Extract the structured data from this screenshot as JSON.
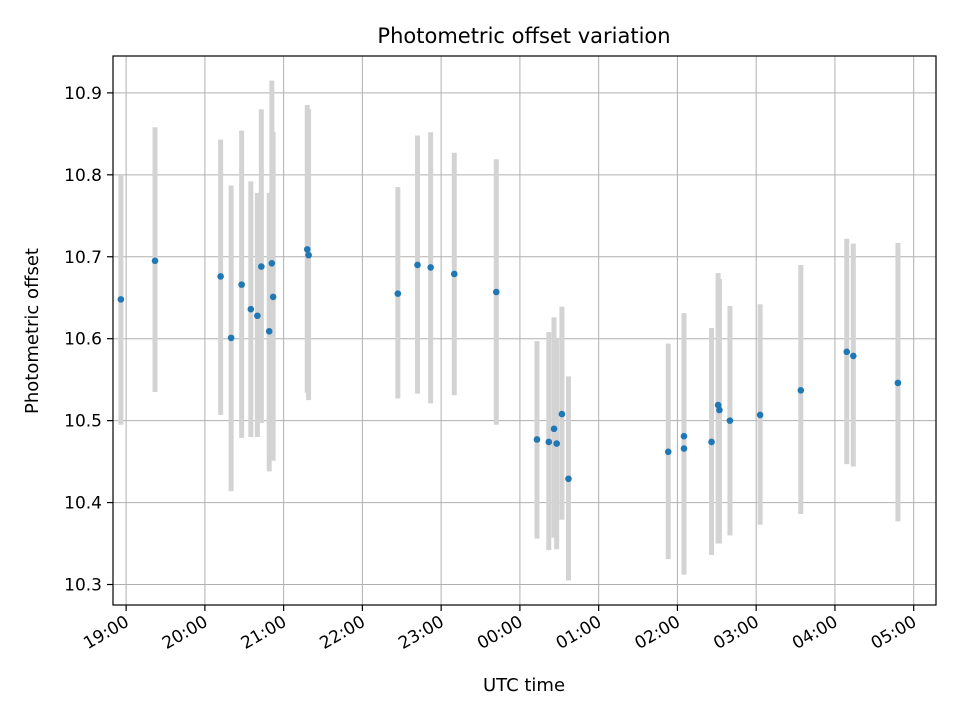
{
  "chart_data": {
    "type": "scatter",
    "title": "Photometric offset variation",
    "xlabel": "UTC time",
    "ylabel": "Photometric offset",
    "x_unit": "UTC time (HH:MM), night spanning midnight",
    "xlim": [
      "18:50",
      "05:17"
    ],
    "ylim": [
      10.275,
      10.945
    ],
    "x_ticks": [
      "19:00",
      "20:00",
      "21:00",
      "22:00",
      "23:00",
      "00:00",
      "01:00",
      "02:00",
      "03:00",
      "04:00",
      "05:00"
    ],
    "y_ticks": [
      10.3,
      10.4,
      10.5,
      10.6,
      10.7,
      10.8,
      10.9
    ],
    "grid": true,
    "x_tick_rotation": 30,
    "colors": {
      "point": "#1f77b4",
      "errorbar": "#d3d3d3",
      "grid": "#b0b0b0"
    },
    "series": [
      {
        "points": [
          {
            "x": "18:56",
            "y": 10.648,
            "low": 10.495,
            "high": 10.8
          },
          {
            "x": "19:22",
            "y": 10.695,
            "low": 10.535,
            "high": 10.858
          },
          {
            "x": "20:12",
            "y": 10.676,
            "low": 10.507,
            "high": 10.843
          },
          {
            "x": "20:20",
            "y": 10.601,
            "low": 10.414,
            "high": 10.787
          },
          {
            "x": "20:28",
            "y": 10.666,
            "low": 10.479,
            "high": 10.854
          },
          {
            "x": "20:35",
            "y": 10.636,
            "low": 10.48,
            "high": 10.792
          },
          {
            "x": "20:40",
            "y": 10.628,
            "low": 10.48,
            "high": 10.778
          },
          {
            "x": "20:43",
            "y": 10.688,
            "low": 10.497,
            "high": 10.88
          },
          {
            "x": "20:49",
            "y": 10.609,
            "low": 10.438,
            "high": 10.778
          },
          {
            "x": "20:51",
            "y": 10.692,
            "low": 10.47,
            "high": 10.915
          },
          {
            "x": "20:52",
            "y": 10.651,
            "low": 10.451,
            "high": 10.852
          },
          {
            "x": "21:18",
            "y": 10.709,
            "low": 10.534,
            "high": 10.885
          },
          {
            "x": "21:19",
            "y": 10.702,
            "low": 10.525,
            "high": 10.88
          },
          {
            "x": "22:27",
            "y": 10.655,
            "low": 10.527,
            "high": 10.785
          },
          {
            "x": "22:42",
            "y": 10.69,
            "low": 10.533,
            "high": 10.848
          },
          {
            "x": "22:52",
            "y": 10.687,
            "low": 10.521,
            "high": 10.852
          },
          {
            "x": "23:10",
            "y": 10.679,
            "low": 10.531,
            "high": 10.827
          },
          {
            "x": "23:42",
            "y": 10.657,
            "low": 10.495,
            "high": 10.819
          },
          {
            "x": "00:13",
            "y": 10.477,
            "low": 10.356,
            "high": 10.597
          },
          {
            "x": "00:22",
            "y": 10.474,
            "low": 10.342,
            "high": 10.608
          },
          {
            "x": "00:26",
            "y": 10.49,
            "low": 10.357,
            "high": 10.626
          },
          {
            "x": "00:28",
            "y": 10.472,
            "low": 10.343,
            "high": 10.601
          },
          {
            "x": "00:32",
            "y": 10.508,
            "low": 10.379,
            "high": 10.639
          },
          {
            "x": "00:37",
            "y": 10.429,
            "low": 10.305,
            "high": 10.554
          },
          {
            "x": "01:53",
            "y": 10.462,
            "low": 10.331,
            "high": 10.594
          },
          {
            "x": "02:05",
            "y": 10.466,
            "low": 10.312,
            "high": 10.631
          },
          {
            "x": "02:05",
            "y": 10.481,
            "low": 10.312,
            "high": 10.631
          },
          {
            "x": "02:26",
            "y": 10.474,
            "low": 10.336,
            "high": 10.613
          },
          {
            "x": "02:31",
            "y": 10.519,
            "low": 10.35,
            "high": 10.68
          },
          {
            "x": "02:32",
            "y": 10.513,
            "low": 10.35,
            "high": 10.673
          },
          {
            "x": "02:40",
            "y": 10.5,
            "low": 10.36,
            "high": 10.64
          },
          {
            "x": "03:03",
            "y": 10.507,
            "low": 10.373,
            "high": 10.642
          },
          {
            "x": "03:34",
            "y": 10.537,
            "low": 10.386,
            "high": 10.69
          },
          {
            "x": "04:09",
            "y": 10.584,
            "low": 10.447,
            "high": 10.722
          },
          {
            "x": "04:14",
            "y": 10.579,
            "low": 10.444,
            "high": 10.716
          },
          {
            "x": "04:48",
            "y": 10.546,
            "low": 10.377,
            "high": 10.717
          }
        ]
      }
    ]
  }
}
